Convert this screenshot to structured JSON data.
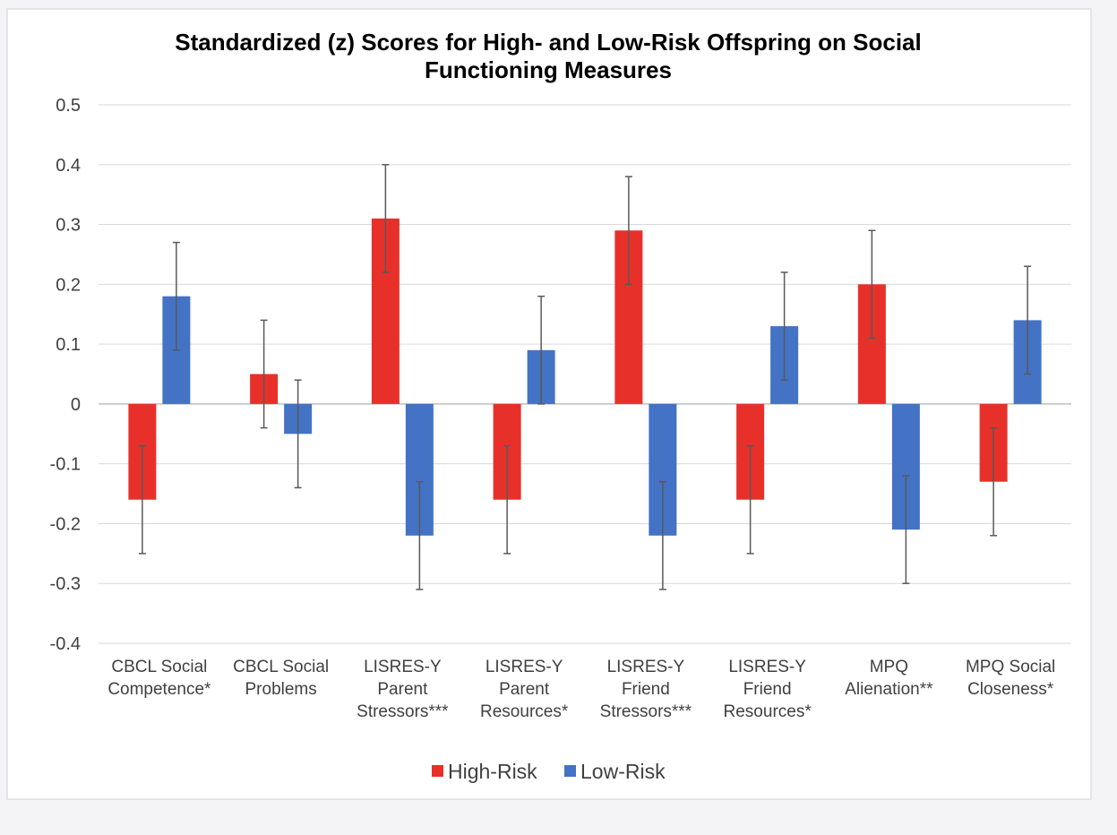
{
  "chart_data": {
    "type": "bar",
    "title_lines": [
      "Standardized (z) Scores for High- and Low-Risk Offspring on Social",
      "Functioning Measures"
    ],
    "categories": [
      [
        "CBCL Social",
        "Competence*"
      ],
      [
        "CBCL Social",
        "Problems"
      ],
      [
        "LISRES-Y",
        "Parent",
        "Stressors***"
      ],
      [
        "LISRES-Y",
        "Parent",
        "Resources*"
      ],
      [
        "LISRES-Y",
        "Friend",
        "Stressors***"
      ],
      [
        "LISRES-Y",
        "Friend",
        "Resources*"
      ],
      [
        "MPQ",
        "Alienation**"
      ],
      [
        "MPQ Social",
        "Closeness*"
      ]
    ],
    "series": [
      {
        "name": "High-Risk",
        "color": "#e8302a",
        "values": [
          -0.16,
          0.05,
          0.31,
          -0.16,
          0.29,
          -0.16,
          0.2,
          -0.13
        ],
        "error": [
          0.09,
          0.09,
          0.09,
          0.09,
          0.09,
          0.09,
          0.09,
          0.09
        ]
      },
      {
        "name": "Low-Risk",
        "color": "#4472c4",
        "values": [
          0.18,
          -0.05,
          -0.22,
          0.09,
          -0.22,
          0.13,
          -0.21,
          0.14
        ],
        "error": [
          0.09,
          0.09,
          0.09,
          0.09,
          0.09,
          0.09,
          0.09,
          0.09
        ]
      }
    ],
    "yticks": [
      "0.5",
      "0.4",
      "0.3",
      "0.2",
      "0.1",
      "0",
      "-0.1",
      "-0.2",
      "-0.3",
      "-0.4"
    ],
    "ylim": [
      -0.4,
      0.5
    ],
    "ystep": 0.1,
    "grid": true,
    "legend_position": "bottom"
  }
}
